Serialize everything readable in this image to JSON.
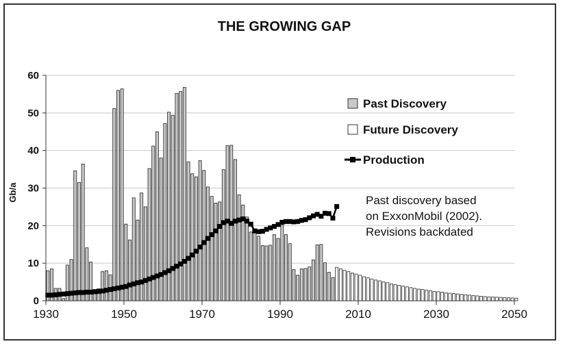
{
  "chart_data": {
    "type": "bar",
    "title": "THE GROWING GAP",
    "ylabel": "Gb/a",
    "xlabel": "",
    "ylim": [
      0,
      60
    ],
    "xlim": [
      1930,
      2050
    ],
    "yticks": [
      0,
      10,
      20,
      30,
      40,
      50,
      60
    ],
    "xticks": [
      1930,
      1950,
      1970,
      1990,
      2010,
      2030,
      2050
    ],
    "grid": "horizontal",
    "legend_position": "top-right",
    "annotation": [
      "Past discovery based",
      "on ExxonMobil (2002).",
      "Revisions backdated"
    ],
    "series": [
      {
        "name": "Past Discovery",
        "kind": "bar",
        "color": "#c8c8c8",
        "x_start": 1930,
        "values": [
          8,
          8.5,
          3.3,
          3.3,
          0.6,
          9.5,
          11,
          34.6,
          31.5,
          36.4,
          14.1,
          10.3,
          3,
          3.2,
          7.8,
          8,
          6.9,
          51.2,
          56,
          56.4,
          20.4,
          16.2,
          27.4,
          21.5,
          28.7,
          25,
          35.2,
          41.2,
          45,
          38,
          47.2,
          50.2,
          49.4,
          55.2,
          55.7,
          56.8,
          37,
          33.8,
          33,
          37.3,
          34.7,
          30.3,
          27.8,
          26,
          26.3,
          34.9,
          41.3,
          41.4,
          37.6,
          28.2,
          25.5,
          22.3,
          18.3,
          18.1,
          17.2,
          14.7,
          14.6,
          14.8,
          17.6,
          16.6,
          20.1,
          17.6,
          15.2,
          8.3,
          6.8,
          8.5,
          8.6,
          9,
          10.9,
          14.9,
          15,
          10.1,
          7.6,
          6.2
        ]
      },
      {
        "name": "Future Discovery",
        "kind": "bar",
        "color": "#ffffff",
        "x_start": 2004,
        "values": [
          8.9,
          8.5,
          8.1,
          7.8,
          7.4,
          7.1,
          6.8,
          6.4,
          6.1,
          5.8,
          5.5,
          5.3,
          5,
          4.8,
          4.5,
          4.3,
          4.1,
          3.9,
          3.7,
          3.5,
          3.3,
          3.1,
          3,
          2.8,
          2.7,
          2.5,
          2.4,
          2.3,
          2.1,
          2,
          1.9,
          1.8,
          1.7,
          1.6,
          1.5,
          1.4,
          1.3,
          1.2,
          1.1,
          1.05,
          1,
          0.95,
          0.9,
          0.85,
          0.8,
          0.75,
          0.7
        ]
      },
      {
        "name": "Production",
        "kind": "line",
        "color": "#000000",
        "x_start": 1930,
        "values": [
          1.5,
          1.5,
          1.6,
          1.7,
          1.8,
          1.9,
          2,
          2.1,
          2.2,
          2.2,
          2.3,
          2.3,
          2.4,
          2.5,
          2.6,
          2.8,
          3,
          3.2,
          3.4,
          3.6,
          3.8,
          4.2,
          4.5,
          4.8,
          5,
          5.4,
          5.8,
          6.2,
          6.6,
          7,
          7.5,
          8,
          8.6,
          9.2,
          9.8,
          10.5,
          11.3,
          12.2,
          13.2,
          14.3,
          15.5,
          16.6,
          17.6,
          18.6,
          19.8,
          20.8,
          21.2,
          20.6,
          21.2,
          21.5,
          21.8,
          21.2,
          20.4,
          18.6,
          18.4,
          18.5,
          19,
          19.4,
          19.8,
          20.3,
          20.9,
          21.1,
          21.1,
          21.0,
          21.1,
          21.4,
          21.6,
          22.1,
          22.6,
          23.0,
          22.5,
          23.3,
          23.2,
          22.0,
          25.1
        ]
      }
    ]
  }
}
